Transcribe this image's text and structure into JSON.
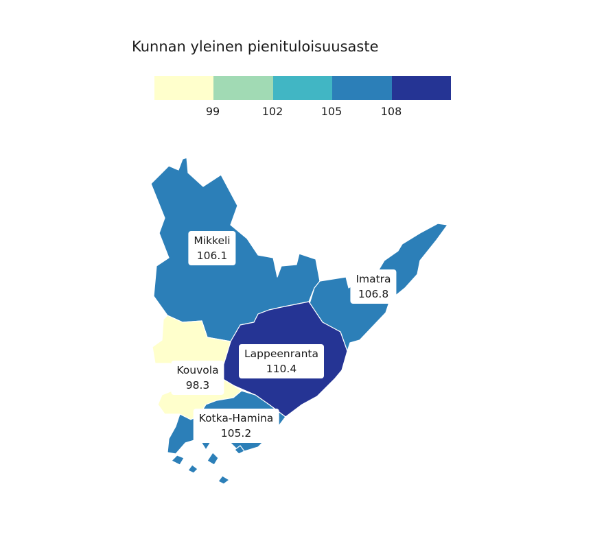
{
  "title": "Kunnan yleinen pienituloisuusaste",
  "legend": {
    "colors": [
      "#ffffcc",
      "#a1dab4",
      "#41b6c4",
      "#2c7fb8",
      "#253494"
    ],
    "ticks": [
      "99",
      "102",
      "105",
      "108"
    ]
  },
  "regions": [
    {
      "name": "Mikkeli",
      "value": "106.1",
      "color": "#2c7fb8"
    },
    {
      "name": "Imatra",
      "value": "106.8",
      "color": "#2c7fb8"
    },
    {
      "name": "Lappeenranta",
      "value": "110.4",
      "color": "#253494"
    },
    {
      "name": "Kouvola",
      "value": "98.3",
      "color": "#ffffcc"
    },
    {
      "name": "Kotka-Hamina",
      "value": "105.2",
      "color": "#2c7fb8"
    }
  ]
}
